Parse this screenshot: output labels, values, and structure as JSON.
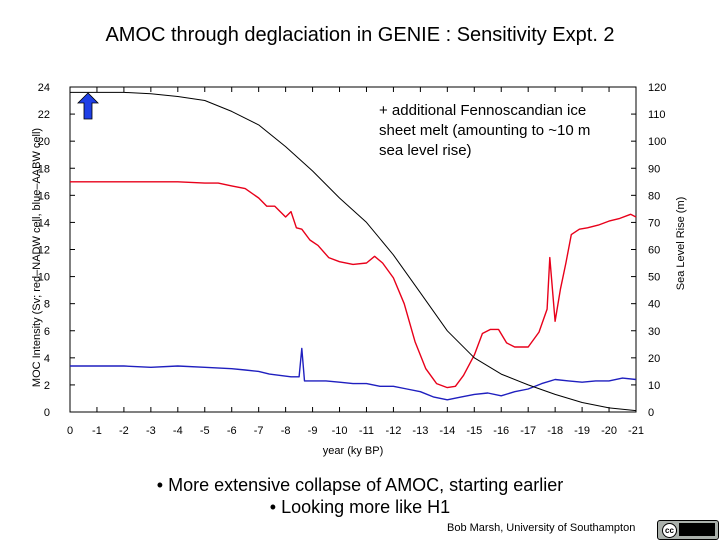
{
  "title": "AMOC through deglaciation in GENIE : Sensitivity Expt. 2",
  "bullets": [
    "• More extensive collapse of AMOC, starting earlier",
    "• Looking more like H1"
  ],
  "credit": "Bob Marsh, University of Southampton",
  "license_badge": "cc-by-nc-sa",
  "chart_data": {
    "type": "line",
    "xlabel": "year (ky BP)",
    "ylabel": "MOC Intensity (Sv; red–NADW cell, blue–AABW cell)",
    "y2label": "Sea Level Rise (m)",
    "xlim": [
      0,
      -21
    ],
    "ylim": [
      0,
      24
    ],
    "y2lim": [
      0,
      120
    ],
    "xticks": [
      "0",
      "-1",
      "-2",
      "-3",
      "-4",
      "-5",
      "-6",
      "-7",
      "-8",
      "-9",
      "-10",
      "-11",
      "-12",
      "-13",
      "-14",
      "-15",
      "-16",
      "-17",
      "-18",
      "-19",
      "-20",
      "-21"
    ],
    "yticks": [
      "0",
      "2",
      "4",
      "6",
      "8",
      "10",
      "12",
      "14",
      "16",
      "18",
      "20",
      "22",
      "24"
    ],
    "y2ticks": [
      "0",
      "10",
      "20",
      "30",
      "40",
      "50",
      "60",
      "70",
      "80",
      "90",
      "100",
      "110",
      "120"
    ],
    "annotation": "+ additional Fennoscandian ice sheet melt (amounting to ~10 m sea level rise)",
    "colors": {
      "nadw": "#e8001a",
      "aabw": "#1f1fbf",
      "sea_level": "#000000",
      "arrow": "#1f3fe6"
    },
    "series": [
      {
        "name": "red–NADW cell",
        "axis": "left",
        "x": [
          0,
          -1,
          -2,
          -3,
          -4,
          -5,
          -5.5,
          -6,
          -6.5,
          -7,
          -7.3,
          -7.6,
          -8,
          -8.2,
          -8.4,
          -8.6,
          -8.9,
          -9.2,
          -9.6,
          -10,
          -10.5,
          -11,
          -11.3,
          -11.6,
          -12,
          -12.4,
          -12.8,
          -13.2,
          -13.6,
          -14,
          -14.3,
          -14.6,
          -15,
          -15.3,
          -15.6,
          -15.9,
          -16.2,
          -16.5,
          -17,
          -17.4,
          -17.7,
          -17.8,
          -18,
          -18.2,
          -18.4,
          -18.6,
          -18.9,
          -19.2,
          -19.6,
          -20,
          -20.4,
          -20.8,
          -21
        ],
        "y": [
          17,
          17,
          17,
          17,
          17,
          16.9,
          16.9,
          16.7,
          16.5,
          15.8,
          15.2,
          15.2,
          14.4,
          14.8,
          13.6,
          13.5,
          12.7,
          12.3,
          11.4,
          11.1,
          10.9,
          11.0,
          11.5,
          11.0,
          9.9,
          8.0,
          5.2,
          3.2,
          2.1,
          1.8,
          1.9,
          2.7,
          4.2,
          5.8,
          6.1,
          6.1,
          5.1,
          4.8,
          4.8,
          5.9,
          7.6,
          11.4,
          6.7,
          9.1,
          11.0,
          13.1,
          13.5,
          13.6,
          13.8,
          14.1,
          14.3,
          14.6,
          14.4
        ]
      },
      {
        "name": "blue–AABW cell",
        "axis": "left",
        "x": [
          0,
          -1,
          -2,
          -3,
          -4,
          -5,
          -6,
          -6.5,
          -7,
          -7.4,
          -7.8,
          -8.2,
          -8.5,
          -8.6,
          -8.7,
          -9,
          -9.5,
          -10,
          -10.5,
          -11,
          -11.5,
          -12,
          -12.5,
          -13,
          -13.5,
          -14,
          -14.5,
          -15,
          -15.5,
          -16,
          -16.5,
          -17,
          -17.5,
          -18,
          -18.5,
          -19,
          -19.5,
          -20,
          -20.5,
          -21
        ],
        "y": [
          3.4,
          3.4,
          3.4,
          3.3,
          3.4,
          3.3,
          3.2,
          3.1,
          3.0,
          2.8,
          2.7,
          2.6,
          2.6,
          4.7,
          2.3,
          2.3,
          2.3,
          2.2,
          2.1,
          2.1,
          1.9,
          1.9,
          1.7,
          1.5,
          1.1,
          0.9,
          1.1,
          1.3,
          1.4,
          1.2,
          1.5,
          1.7,
          2.1,
          2.4,
          2.3,
          2.2,
          2.3,
          2.3,
          2.5,
          2.4
        ]
      },
      {
        "name": "Sea Level Rise",
        "axis": "right",
        "x": [
          0,
          -1,
          -2,
          -3,
          -4,
          -5,
          -6,
          -7,
          -8,
          -9,
          -10,
          -11,
          -12,
          -13,
          -14,
          -15,
          -16,
          -17,
          -18,
          -19,
          -20,
          -21
        ],
        "y": [
          118,
          118,
          118,
          117.5,
          116.5,
          115,
          111,
          106,
          98,
          89,
          79,
          70,
          58,
          44,
          30,
          20,
          14,
          10,
          6.5,
          3.5,
          1.5,
          0.5
        ]
      }
    ]
  }
}
